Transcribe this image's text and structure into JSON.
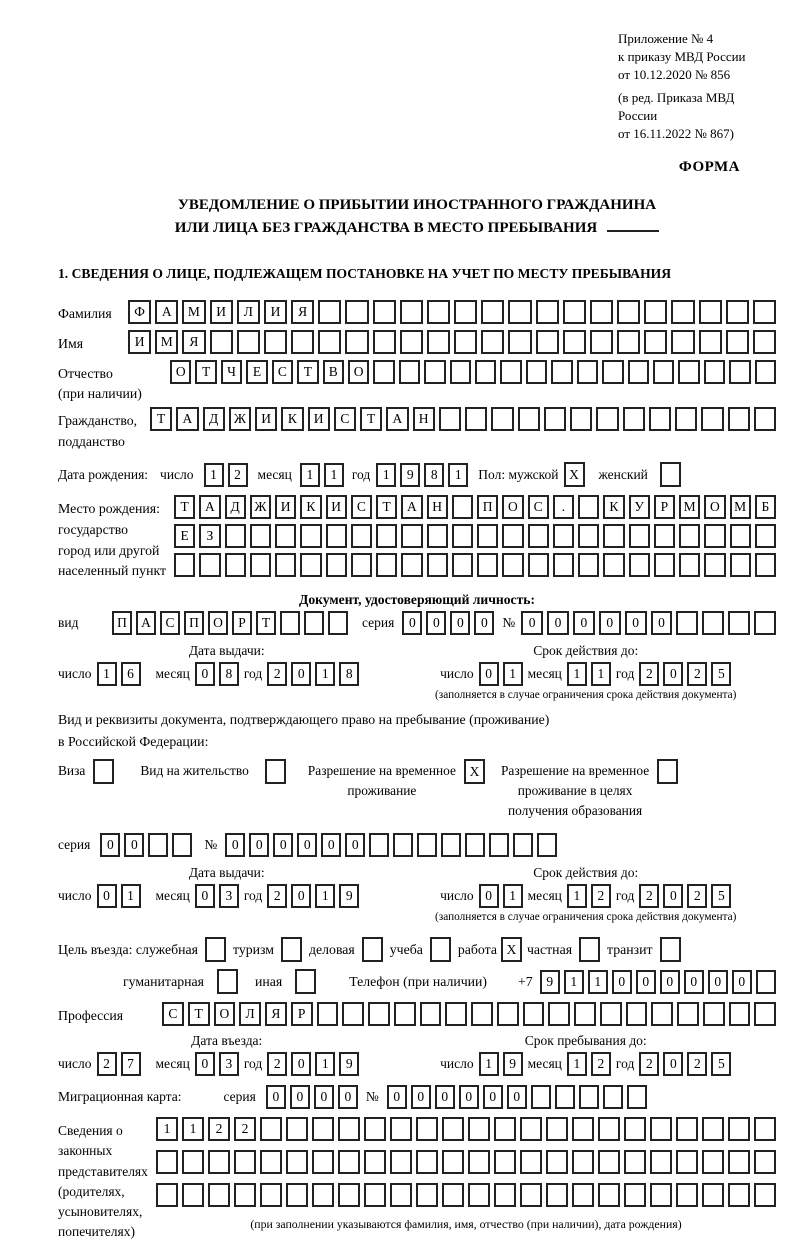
{
  "doc": {
    "ref_lines": [
      "Приложение № 4",
      "к приказу МВД России",
      "от 10.12.2020 № 856",
      "(в ред. Приказа МВД России",
      "от 16.11.2022 № 867)"
    ],
    "form_label": "ФОРМА",
    "title_line1": "УВЕДОМЛЕНИЕ О ПРИБЫТИИ ИНОСТРАННОГО ГРАЖДАНИНА",
    "title_line2": "ИЛИ ЛИЦА БЕЗ ГРАЖДАНСТВА В МЕСТО ПРЕБЫВАНИЯ",
    "section1_heading": "1. СВЕДЕНИЯ О ЛИЦЕ, ПОДЛЕЖАЩЕМ ПОСТАНОВКЕ НА УЧЕТ ПО МЕСТУ ПРЕБЫВАНИЯ"
  },
  "labels": {
    "surname": "Фамилия",
    "name": "Имя",
    "patronymic1": "Отчество",
    "patronymic2": "(при наличии)",
    "citizenship1": "Гражданство,",
    "citizenship2": "подданство",
    "birth_date": "Дата рождения:",
    "day": "число",
    "month": "месяц",
    "year": "год",
    "sex_male": "Пол: мужской",
    "sex_female": "женский",
    "birth_place1": "Место рождения:",
    "birth_place2": "государство",
    "birth_place3": "город или другой",
    "birth_place4": "населенный пункт",
    "identity_heading": "Документ, удостоверяющий личность:",
    "kind": "вид",
    "series": "серия",
    "number": "№",
    "issue_date": "Дата выдачи:",
    "valid_until": "Срок действия до:",
    "valid_note": "(заполняется в случае ограничения срока действия документа)",
    "resid_doc_line1": "Вид и реквизиты документа, подтверждающего право на пребывание (проживание)",
    "resid_doc_line2": "в Российской Федерации:",
    "visa": "Виза",
    "residence_permit": "Вид на жительство",
    "temp_permit1": "Разрешение на временное",
    "temp_permit2": "проживание",
    "edu_permit1": "Разрешение на временное",
    "edu_permit2": "проживание в целях",
    "edu_permit3": "получения образования",
    "purpose": "Цель въезда: служебная",
    "tourism": "туризм",
    "business": "деловая",
    "study": "учеба",
    "work": "работа",
    "private": "частная",
    "transit": "транзит",
    "humanitarian": "гуманитарная",
    "other": "иная",
    "phone": "Телефон (при наличии)",
    "phone_prefix": "+7",
    "profession": "Профессия",
    "entry_date": "Дата въезда:",
    "stay_until": "Срок пребывания до:",
    "migration_card": "Миграционная карта:",
    "representatives": [
      "Сведения о",
      "законных",
      "представителях",
      "(родителях,",
      "усыновителях,",
      "попечителях)"
    ],
    "representatives_note": "(при заполнении указываются фамилия, имя, отчество (при наличии), дата рождения)"
  },
  "cells": {
    "surname": {
      "n": 24,
      "v": "ФАМИЛИЯ"
    },
    "name": {
      "n": 24,
      "v": "ИМЯ"
    },
    "patronymic": {
      "n": 24,
      "v": "ОТЧЕСТВО"
    },
    "citizenship": {
      "n": 24,
      "v": "ТАДЖИКИСТАН"
    },
    "birth_day": {
      "n": 2,
      "v": "12"
    },
    "birth_month": {
      "n": 2,
      "v": "11"
    },
    "birth_year": {
      "n": 4,
      "v": "1981"
    },
    "sex_male": {
      "n": 1,
      "v": "X"
    },
    "sex_female": {
      "n": 1,
      "v": ""
    },
    "birth_place_row1": {
      "n": 24,
      "v": "ТАДЖИКИСТАН ПОС. КУРМОМБ"
    },
    "birth_place_row2": {
      "n": 24,
      "v": "ЕЗ"
    },
    "birth_place_row3": {
      "n": 24,
      "v": ""
    },
    "id_kind": {
      "n": 10,
      "v": "ПАСПОРТ"
    },
    "id_series": {
      "n": 4,
      "v": "0000"
    },
    "id_number": {
      "n": 10,
      "v": "000000"
    },
    "id_issue_day": {
      "n": 2,
      "v": "16"
    },
    "id_issue_month": {
      "n": 2,
      "v": "08"
    },
    "id_issue_year": {
      "n": 4,
      "v": "2018"
    },
    "id_valid_day": {
      "n": 2,
      "v": "01"
    },
    "id_valid_month": {
      "n": 2,
      "v": "11"
    },
    "id_valid_year": {
      "n": 4,
      "v": "2025"
    },
    "visa_box": {
      "n": 1,
      "v": ""
    },
    "residence_box": {
      "n": 1,
      "v": ""
    },
    "temp_box": {
      "n": 1,
      "v": "X"
    },
    "edu_box": {
      "n": 1,
      "v": ""
    },
    "resid_series": {
      "n": 4,
      "v": "00"
    },
    "resid_number": {
      "n": 14,
      "v": "000000"
    },
    "resid_issue_day": {
      "n": 2,
      "v": "01"
    },
    "resid_issue_month": {
      "n": 2,
      "v": "03"
    },
    "resid_issue_year": {
      "n": 4,
      "v": "2019"
    },
    "resid_valid_day": {
      "n": 2,
      "v": "01"
    },
    "resid_valid_month": {
      "n": 2,
      "v": "12"
    },
    "resid_valid_year": {
      "n": 4,
      "v": "2025"
    },
    "purpose_official": {
      "n": 1,
      "v": ""
    },
    "purpose_tourism": {
      "n": 1,
      "v": ""
    },
    "purpose_business": {
      "n": 1,
      "v": ""
    },
    "purpose_study": {
      "n": 1,
      "v": ""
    },
    "purpose_work": {
      "n": 1,
      "v": "X"
    },
    "purpose_private": {
      "n": 1,
      "v": ""
    },
    "purpose_transit": {
      "n": 1,
      "v": ""
    },
    "purpose_humanitarian": {
      "n": 1,
      "v": ""
    },
    "purpose_other": {
      "n": 1,
      "v": ""
    },
    "phone": {
      "n": 10,
      "v": "911000000"
    },
    "profession": {
      "n": 24,
      "v": "СТОЛЯР"
    },
    "entry_day": {
      "n": 2,
      "v": "27"
    },
    "entry_month": {
      "n": 2,
      "v": "03"
    },
    "entry_year": {
      "n": 4,
      "v": "2019"
    },
    "stay_day": {
      "n": 2,
      "v": "19"
    },
    "stay_month": {
      "n": 2,
      "v": "12"
    },
    "stay_year": {
      "n": 4,
      "v": "2025"
    },
    "mig_series": {
      "n": 4,
      "v": "0000"
    },
    "mig_number": {
      "n": 11,
      "v": "000000"
    },
    "rep_row1": {
      "n": 24,
      "v": "1122"
    },
    "rep_row2": {
      "n": 24,
      "v": ""
    },
    "rep_row3": {
      "n": 24,
      "v": ""
    }
  }
}
